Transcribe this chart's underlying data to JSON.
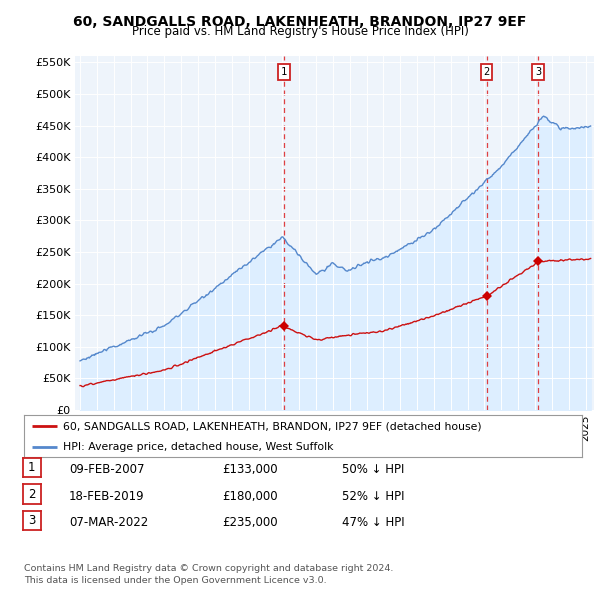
{
  "title": "60, SANDGALLS ROAD, LAKENHEATH, BRANDON, IP27 9EF",
  "subtitle": "Price paid vs. HM Land Registry's House Price Index (HPI)",
  "yticks": [
    0,
    50000,
    100000,
    150000,
    200000,
    250000,
    300000,
    350000,
    400000,
    450000,
    500000,
    550000
  ],
  "ytick_labels": [
    "£0",
    "£50K",
    "£100K",
    "£150K",
    "£200K",
    "£250K",
    "£300K",
    "£350K",
    "£400K",
    "£450K",
    "£500K",
    "£550K"
  ],
  "xlim_start": 1994.7,
  "xlim_end": 2025.5,
  "ylim_min": 0,
  "ylim_max": 560000,
  "sale_dates": [
    2007.11,
    2019.13,
    2022.18
  ],
  "sale_prices": [
    133000,
    180000,
    235000
  ],
  "sale_labels": [
    "1",
    "2",
    "3"
  ],
  "vline_color": "#dd2222",
  "dot_color": "#cc0000",
  "hpi_line_color": "#5588cc",
  "hpi_fill_color": "#ddeeff",
  "price_line_color": "#cc1111",
  "legend_label_price": "60, SANDGALLS ROAD, LAKENHEATH, BRANDON, IP27 9EF (detached house)",
  "legend_label_hpi": "HPI: Average price, detached house, West Suffolk",
  "table_rows": [
    [
      "1",
      "09-FEB-2007",
      "£133,000",
      "50% ↓ HPI"
    ],
    [
      "2",
      "18-FEB-2019",
      "£180,000",
      "52% ↓ HPI"
    ],
    [
      "3",
      "07-MAR-2022",
      "£235,000",
      "47% ↓ HPI"
    ]
  ],
  "footnote": "Contains HM Land Registry data © Crown copyright and database right 2024.\nThis data is licensed under the Open Government Licence v3.0.",
  "background_color": "#ffffff",
  "plot_bg_color": "#eef4fb"
}
